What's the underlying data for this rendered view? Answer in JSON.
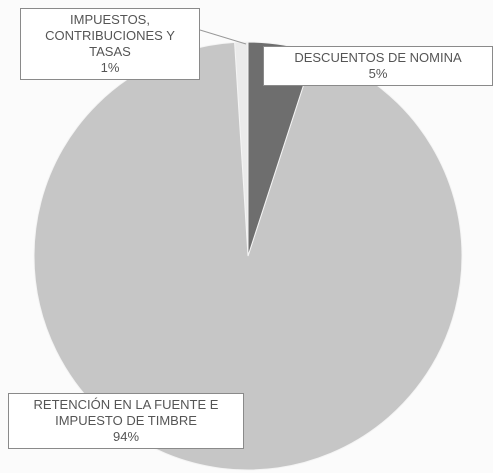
{
  "chart_data": {
    "type": "pie",
    "categories": [
      "DESCUENTOS DE NOMINA",
      "RETENCIÓN EN LA FUENTE E IMPUESTO DE TIMBRE",
      "IMPUESTOS, CONTRIBUCIONES Y TASAS"
    ],
    "values": [
      5,
      94,
      1
    ],
    "value_labels": [
      "5%",
      "94%",
      "1%"
    ],
    "colors": [
      "#6e6e6e",
      "#c6c6c6",
      "#ebebeb"
    ]
  }
}
